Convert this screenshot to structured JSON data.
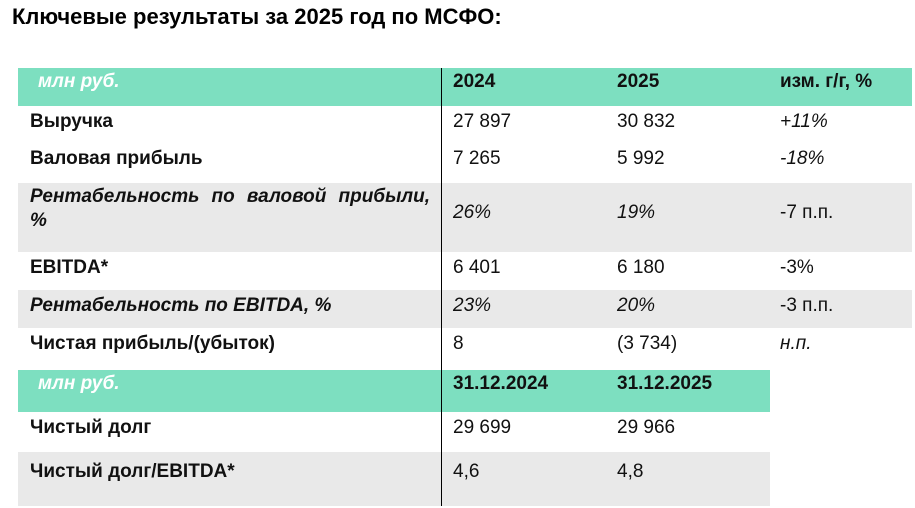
{
  "title": "Ключевые результаты за 2025 год по МСФО:",
  "table": {
    "header": [
      "млн руб.",
      "2024",
      "2025",
      "изм. г/г, %"
    ],
    "rows": [
      [
        "Выручка",
        "27 897",
        "30 832",
        "+11%"
      ],
      [
        "Валовая прибыль",
        "7 265",
        "5 992",
        "-18%"
      ],
      [
        "Рентабельность по валовой прибыли, %",
        "26%",
        "19%",
        "-7 п.п."
      ],
      [
        "EBITDA*",
        "6 401",
        "6 180",
        "-3%"
      ],
      [
        "Рентабельность по EBITDA, %",
        "23%",
        "20%",
        "-3 п.п."
      ],
      [
        "Чистая прибыль/(убыток)",
        "8",
        "(3 734)",
        "н.п."
      ]
    ]
  },
  "table2": {
    "header": [
      "млн руб.",
      "31.12.2024",
      "31.12.2025"
    ],
    "rows": [
      [
        "Чистый долг",
        "29 699",
        "29 966"
      ],
      [
        "Чистый долг/EBITDA*",
        "4,6",
        "4,8"
      ]
    ]
  }
}
